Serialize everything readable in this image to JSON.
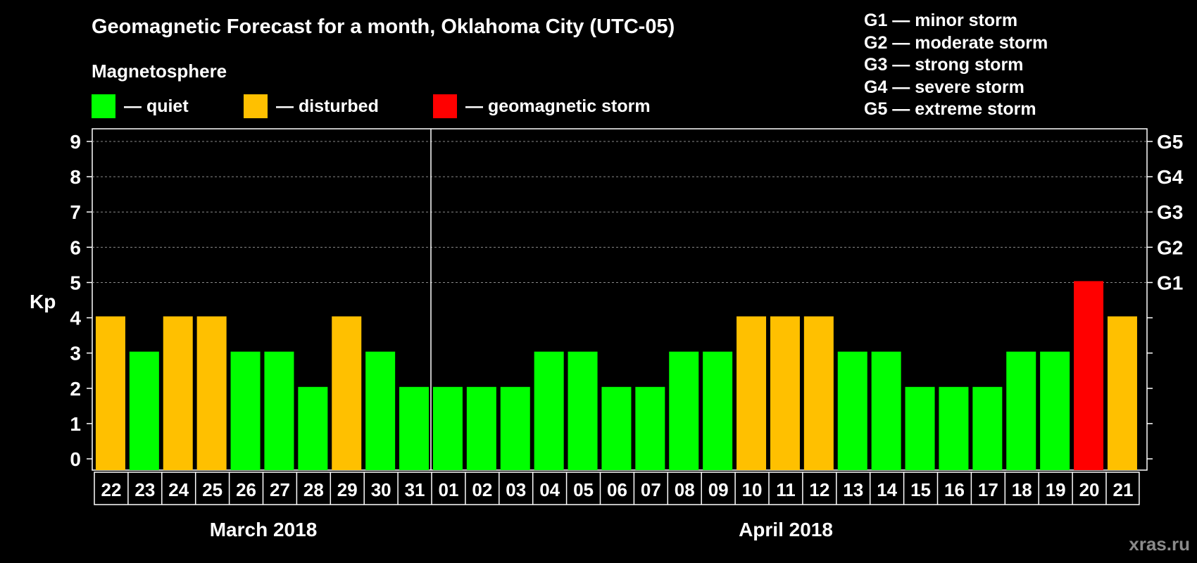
{
  "title": "Geomagnetic Forecast for a month, Oklahoma City (UTC-05)",
  "legend": {
    "title": "Magnetosphere",
    "items": [
      {
        "label": "— quiet",
        "color": "#00ff00"
      },
      {
        "label": "— disturbed",
        "color": "#ffc000"
      },
      {
        "label": "— geomagnetic storm",
        "color": "#ff0000"
      }
    ]
  },
  "storm_levels": [
    "G1 — minor storm",
    "G2 — moderate storm",
    "G3 — strong storm",
    "G4 — severe storm",
    "G5 — extreme storm"
  ],
  "months": [
    "March 2018",
    "April 2018"
  ],
  "watermark": "xras.ru",
  "chart_data": {
    "type": "bar",
    "title": "Geomagnetic Forecast for a month, Oklahoma City (UTC-05)",
    "ylabel": "Kp",
    "ylim": [
      0,
      9
    ],
    "yticks": [
      0,
      1,
      2,
      3,
      4,
      5,
      6,
      7,
      8,
      9
    ],
    "grid": "dashed horizontal at Kp 5-9",
    "right_axis_labels": [
      {
        "kp": 5,
        "label": "G1"
      },
      {
        "kp": 6,
        "label": "G2"
      },
      {
        "kp": 7,
        "label": "G3"
      },
      {
        "kp": 8,
        "label": "G4"
      },
      {
        "kp": 9,
        "label": "G5"
      }
    ],
    "categories": [
      "22",
      "23",
      "24",
      "25",
      "26",
      "27",
      "28",
      "29",
      "30",
      "31",
      "01",
      "02",
      "03",
      "04",
      "05",
      "06",
      "07",
      "08",
      "09",
      "10",
      "11",
      "12",
      "13",
      "14",
      "15",
      "16",
      "17",
      "18",
      "19",
      "20",
      "21"
    ],
    "values": [
      4,
      3,
      4,
      4,
      3,
      3,
      2,
      4,
      3,
      2,
      2,
      2,
      2,
      3,
      3,
      2,
      2,
      3,
      3,
      4,
      4,
      4,
      3,
      3,
      2,
      2,
      2,
      3,
      3,
      5,
      4
    ],
    "month_groups": [
      {
        "label": "March 2018",
        "start": 0,
        "end": 9
      },
      {
        "label": "April 2018",
        "start": 10,
        "end": 30
      }
    ],
    "month_divider_after_index": 9,
    "color_rule": {
      "quiet": "#00ff00",
      "disturbed": "#ffc000",
      "storm": "#ff0000"
    }
  }
}
